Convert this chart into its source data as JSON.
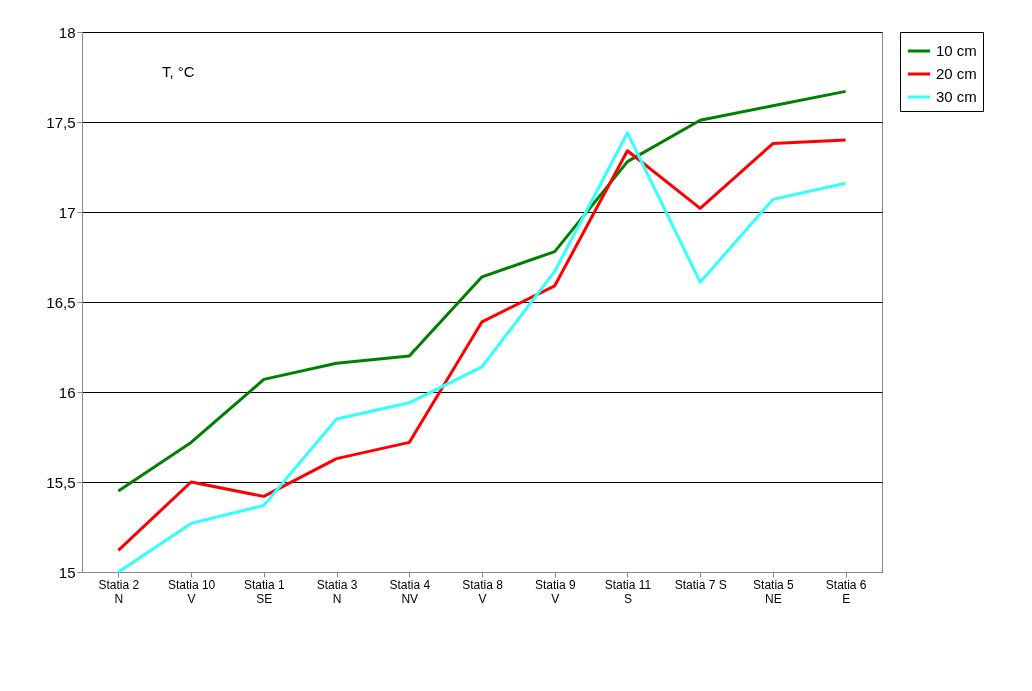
{
  "chart_data": {
    "type": "line",
    "annotations": [
      "T, °C"
    ],
    "categories": [
      "Statia 2\nN",
      "Statia 10\nV",
      "Statia 1\nSE",
      "Statia 3\nN",
      "Statia 4\nNV",
      "Statia 8\nV",
      "Statia 9\nV",
      "Statia 11\nS",
      "Statia 7  S",
      "Statia 5\nNE",
      "Statia 6\nE"
    ],
    "series": [
      {
        "name": "10 cm",
        "color": "#008000",
        "values": [
          15.45,
          15.72,
          16.07,
          16.16,
          16.2,
          16.64,
          16.78,
          17.28,
          17.51,
          17.59,
          17.67
        ]
      },
      {
        "name": "20 cm",
        "color": "#ff0000",
        "values": [
          15.12,
          15.5,
          15.42,
          15.63,
          15.72,
          16.39,
          16.59,
          17.34,
          17.02,
          17.38,
          17.4
        ]
      },
      {
        "name": "30 cm",
        "color": "#33ffff",
        "values": [
          15.0,
          15.27,
          15.37,
          15.85,
          15.94,
          16.14,
          16.67,
          17.44,
          16.61,
          17.07,
          17.16
        ]
      }
    ],
    "ylim": [
      15,
      18
    ],
    "yticks": [
      15,
      {
        "value": 15.5,
        "label": "15,5"
      },
      16,
      {
        "value": 16.5,
        "label": "16,5"
      },
      17,
      {
        "value": 17.5,
        "label": "17,5"
      },
      18
    ],
    "grid": "y",
    "legend": "right",
    "marker": "none",
    "line_style": "solid"
  }
}
